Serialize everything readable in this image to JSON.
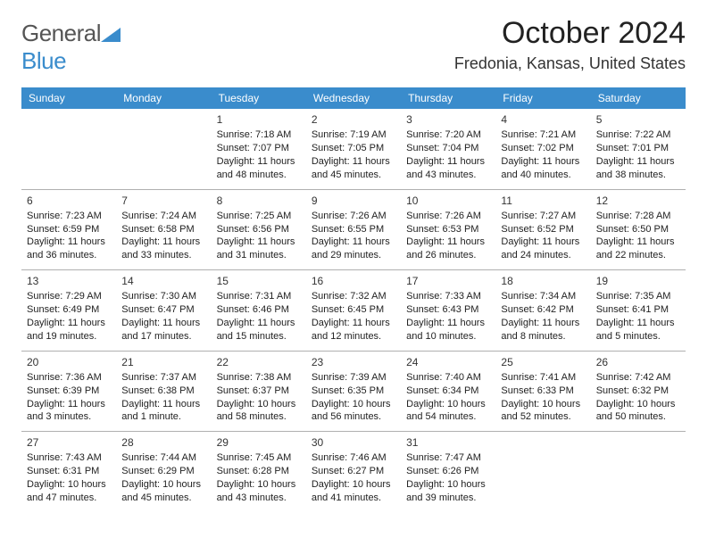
{
  "logo": {
    "text1": "General",
    "text2": "Blue"
  },
  "title": "October 2024",
  "location": "Fredonia, Kansas, United States",
  "colors": {
    "header_bg": "#3a8ccc",
    "header_fg": "#ffffff",
    "text": "#222222",
    "divider": "#b0b0b0",
    "logo_gray": "#555555",
    "logo_blue": "#3a8ccc"
  },
  "weekdays": [
    "Sunday",
    "Monday",
    "Tuesday",
    "Wednesday",
    "Thursday",
    "Friday",
    "Saturday"
  ],
  "weeks": [
    [
      null,
      null,
      {
        "n": "1",
        "sr": "Sunrise: 7:18 AM",
        "ss": "Sunset: 7:07 PM",
        "d1": "Daylight: 11 hours",
        "d2": "and 48 minutes."
      },
      {
        "n": "2",
        "sr": "Sunrise: 7:19 AM",
        "ss": "Sunset: 7:05 PM",
        "d1": "Daylight: 11 hours",
        "d2": "and 45 minutes."
      },
      {
        "n": "3",
        "sr": "Sunrise: 7:20 AM",
        "ss": "Sunset: 7:04 PM",
        "d1": "Daylight: 11 hours",
        "d2": "and 43 minutes."
      },
      {
        "n": "4",
        "sr": "Sunrise: 7:21 AM",
        "ss": "Sunset: 7:02 PM",
        "d1": "Daylight: 11 hours",
        "d2": "and 40 minutes."
      },
      {
        "n": "5",
        "sr": "Sunrise: 7:22 AM",
        "ss": "Sunset: 7:01 PM",
        "d1": "Daylight: 11 hours",
        "d2": "and 38 minutes."
      }
    ],
    [
      {
        "n": "6",
        "sr": "Sunrise: 7:23 AM",
        "ss": "Sunset: 6:59 PM",
        "d1": "Daylight: 11 hours",
        "d2": "and 36 minutes."
      },
      {
        "n": "7",
        "sr": "Sunrise: 7:24 AM",
        "ss": "Sunset: 6:58 PM",
        "d1": "Daylight: 11 hours",
        "d2": "and 33 minutes."
      },
      {
        "n": "8",
        "sr": "Sunrise: 7:25 AM",
        "ss": "Sunset: 6:56 PM",
        "d1": "Daylight: 11 hours",
        "d2": "and 31 minutes."
      },
      {
        "n": "9",
        "sr": "Sunrise: 7:26 AM",
        "ss": "Sunset: 6:55 PM",
        "d1": "Daylight: 11 hours",
        "d2": "and 29 minutes."
      },
      {
        "n": "10",
        "sr": "Sunrise: 7:26 AM",
        "ss": "Sunset: 6:53 PM",
        "d1": "Daylight: 11 hours",
        "d2": "and 26 minutes."
      },
      {
        "n": "11",
        "sr": "Sunrise: 7:27 AM",
        "ss": "Sunset: 6:52 PM",
        "d1": "Daylight: 11 hours",
        "d2": "and 24 minutes."
      },
      {
        "n": "12",
        "sr": "Sunrise: 7:28 AM",
        "ss": "Sunset: 6:50 PM",
        "d1": "Daylight: 11 hours",
        "d2": "and 22 minutes."
      }
    ],
    [
      {
        "n": "13",
        "sr": "Sunrise: 7:29 AM",
        "ss": "Sunset: 6:49 PM",
        "d1": "Daylight: 11 hours",
        "d2": "and 19 minutes."
      },
      {
        "n": "14",
        "sr": "Sunrise: 7:30 AM",
        "ss": "Sunset: 6:47 PM",
        "d1": "Daylight: 11 hours",
        "d2": "and 17 minutes."
      },
      {
        "n": "15",
        "sr": "Sunrise: 7:31 AM",
        "ss": "Sunset: 6:46 PM",
        "d1": "Daylight: 11 hours",
        "d2": "and 15 minutes."
      },
      {
        "n": "16",
        "sr": "Sunrise: 7:32 AM",
        "ss": "Sunset: 6:45 PM",
        "d1": "Daylight: 11 hours",
        "d2": "and 12 minutes."
      },
      {
        "n": "17",
        "sr": "Sunrise: 7:33 AM",
        "ss": "Sunset: 6:43 PM",
        "d1": "Daylight: 11 hours",
        "d2": "and 10 minutes."
      },
      {
        "n": "18",
        "sr": "Sunrise: 7:34 AM",
        "ss": "Sunset: 6:42 PM",
        "d1": "Daylight: 11 hours",
        "d2": "and 8 minutes."
      },
      {
        "n": "19",
        "sr": "Sunrise: 7:35 AM",
        "ss": "Sunset: 6:41 PM",
        "d1": "Daylight: 11 hours",
        "d2": "and 5 minutes."
      }
    ],
    [
      {
        "n": "20",
        "sr": "Sunrise: 7:36 AM",
        "ss": "Sunset: 6:39 PM",
        "d1": "Daylight: 11 hours",
        "d2": "and 3 minutes."
      },
      {
        "n": "21",
        "sr": "Sunrise: 7:37 AM",
        "ss": "Sunset: 6:38 PM",
        "d1": "Daylight: 11 hours",
        "d2": "and 1 minute."
      },
      {
        "n": "22",
        "sr": "Sunrise: 7:38 AM",
        "ss": "Sunset: 6:37 PM",
        "d1": "Daylight: 10 hours",
        "d2": "and 58 minutes."
      },
      {
        "n": "23",
        "sr": "Sunrise: 7:39 AM",
        "ss": "Sunset: 6:35 PM",
        "d1": "Daylight: 10 hours",
        "d2": "and 56 minutes."
      },
      {
        "n": "24",
        "sr": "Sunrise: 7:40 AM",
        "ss": "Sunset: 6:34 PM",
        "d1": "Daylight: 10 hours",
        "d2": "and 54 minutes."
      },
      {
        "n": "25",
        "sr": "Sunrise: 7:41 AM",
        "ss": "Sunset: 6:33 PM",
        "d1": "Daylight: 10 hours",
        "d2": "and 52 minutes."
      },
      {
        "n": "26",
        "sr": "Sunrise: 7:42 AM",
        "ss": "Sunset: 6:32 PM",
        "d1": "Daylight: 10 hours",
        "d2": "and 50 minutes."
      }
    ],
    [
      {
        "n": "27",
        "sr": "Sunrise: 7:43 AM",
        "ss": "Sunset: 6:31 PM",
        "d1": "Daylight: 10 hours",
        "d2": "and 47 minutes."
      },
      {
        "n": "28",
        "sr": "Sunrise: 7:44 AM",
        "ss": "Sunset: 6:29 PM",
        "d1": "Daylight: 10 hours",
        "d2": "and 45 minutes."
      },
      {
        "n": "29",
        "sr": "Sunrise: 7:45 AM",
        "ss": "Sunset: 6:28 PM",
        "d1": "Daylight: 10 hours",
        "d2": "and 43 minutes."
      },
      {
        "n": "30",
        "sr": "Sunrise: 7:46 AM",
        "ss": "Sunset: 6:27 PM",
        "d1": "Daylight: 10 hours",
        "d2": "and 41 minutes."
      },
      {
        "n": "31",
        "sr": "Sunrise: 7:47 AM",
        "ss": "Sunset: 6:26 PM",
        "d1": "Daylight: 10 hours",
        "d2": "and 39 minutes."
      },
      null,
      null
    ]
  ]
}
